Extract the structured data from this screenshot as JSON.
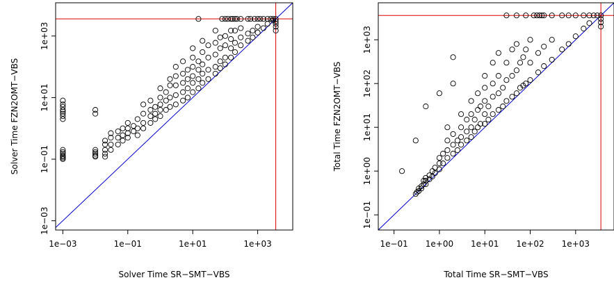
{
  "chart_data": [
    {
      "type": "scatter",
      "scale": "log-log",
      "xlabel": "Solver Time SR−SMT−VBS",
      "ylabel": "Solver Time FZN2OMT−VBS",
      "x_ticks": [
        {
          "value": 0.001,
          "label": "1e−03"
        },
        {
          "value": 0.1,
          "label": "1e−01"
        },
        {
          "value": 10,
          "label": "1e+01"
        },
        {
          "value": 1000,
          "label": "1e+03"
        }
      ],
      "y_ticks": [
        {
          "value": 0.001,
          "label": "1e−03"
        },
        {
          "value": 0.1,
          "label": "1e−01"
        },
        {
          "value": 10,
          "label": "1e+01"
        },
        {
          "value": 1000,
          "label": "1e+03"
        }
      ],
      "xlim": [
        0.0006,
        12000
      ],
      "ylim": [
        0.0005,
        12000
      ],
      "timeout": 3600,
      "diagonal_color": "#0000cc",
      "timeout_color": "#dd0000",
      "points": [
        [
          0.001,
          0.1
        ],
        [
          0.001,
          0.11
        ],
        [
          0.001,
          0.12
        ],
        [
          0.001,
          0.13
        ],
        [
          0.001,
          0.15
        ],
        [
          0.001,
          0.17
        ],
        [
          0.001,
          0.2
        ],
        [
          0.001,
          2.0
        ],
        [
          0.001,
          2.5
        ],
        [
          0.001,
          3.0
        ],
        [
          0.001,
          3.5
        ],
        [
          0.001,
          4.0
        ],
        [
          0.001,
          5.0
        ],
        [
          0.001,
          6.0
        ],
        [
          0.001,
          8.0
        ],
        [
          0.01,
          0.12
        ],
        [
          0.01,
          0.13
        ],
        [
          0.01,
          0.15
        ],
        [
          0.01,
          0.17
        ],
        [
          0.01,
          0.2
        ],
        [
          0.01,
          3.0
        ],
        [
          0.01,
          4.0
        ],
        [
          0.02,
          0.12
        ],
        [
          0.02,
          0.15
        ],
        [
          0.02,
          0.2
        ],
        [
          0.02,
          0.3
        ],
        [
          0.02,
          0.4
        ],
        [
          0.03,
          0.2
        ],
        [
          0.03,
          0.3
        ],
        [
          0.03,
          0.5
        ],
        [
          0.03,
          0.7
        ],
        [
          0.05,
          0.3
        ],
        [
          0.05,
          0.5
        ],
        [
          0.05,
          0.8
        ],
        [
          0.07,
          0.4
        ],
        [
          0.07,
          0.6
        ],
        [
          0.07,
          1.0
        ],
        [
          0.1,
          0.5
        ],
        [
          0.1,
          0.7
        ],
        [
          0.1,
          1.0
        ],
        [
          0.1,
          1.5
        ],
        [
          0.15,
          0.8
        ],
        [
          0.15,
          1.2
        ],
        [
          0.2,
          0.6
        ],
        [
          0.2,
          1.0
        ],
        [
          0.2,
          2.0
        ],
        [
          0.3,
          1.0
        ],
        [
          0.3,
          1.5
        ],
        [
          0.3,
          3.0
        ],
        [
          0.3,
          6.0
        ],
        [
          0.5,
          1.5
        ],
        [
          0.5,
          2.5
        ],
        [
          0.5,
          4.0
        ],
        [
          0.5,
          8.0
        ],
        [
          0.7,
          2.0
        ],
        [
          0.7,
          3.0
        ],
        [
          0.7,
          5.0
        ],
        [
          1,
          2.5
        ],
        [
          1,
          4.0
        ],
        [
          1,
          6.0
        ],
        [
          1,
          10
        ],
        [
          1,
          20
        ],
        [
          1.5,
          4
        ],
        [
          1.5,
          8
        ],
        [
          1.5,
          15
        ],
        [
          2,
          5
        ],
        [
          2,
          10
        ],
        [
          2,
          25
        ],
        [
          2,
          40
        ],
        [
          3,
          6
        ],
        [
          3,
          12
        ],
        [
          3,
          25
        ],
        [
          3,
          50
        ],
        [
          3,
          100
        ],
        [
          5,
          8
        ],
        [
          5,
          15
        ],
        [
          5,
          30
        ],
        [
          5,
          60
        ],
        [
          5,
          150
        ],
        [
          7,
          10
        ],
        [
          7,
          20
        ],
        [
          7,
          40
        ],
        [
          7,
          80
        ],
        [
          10,
          15
        ],
        [
          10,
          30
        ],
        [
          10,
          50
        ],
        [
          10,
          100
        ],
        [
          10,
          200
        ],
        [
          10,
          400
        ],
        [
          15,
          20
        ],
        [
          15,
          40
        ],
        [
          15,
          80
        ],
        [
          15,
          150
        ],
        [
          20,
          30
        ],
        [
          20,
          60
        ],
        [
          20,
          120
        ],
        [
          20,
          300
        ],
        [
          20,
          700
        ],
        [
          30,
          40
        ],
        [
          30,
          80
        ],
        [
          30,
          200
        ],
        [
          30,
          500
        ],
        [
          50,
          60
        ],
        [
          50,
          100
        ],
        [
          50,
          250
        ],
        [
          50,
          600
        ],
        [
          50,
          1500
        ],
        [
          70,
          90
        ],
        [
          70,
          150
        ],
        [
          70,
          400
        ],
        [
          70,
          900
        ],
        [
          100,
          120
        ],
        [
          100,
          200
        ],
        [
          100,
          500
        ],
        [
          100,
          1000
        ],
        [
          150,
          200
        ],
        [
          150,
          400
        ],
        [
          150,
          800
        ],
        [
          150,
          1500
        ],
        [
          200,
          300
        ],
        [
          200,
          600
        ],
        [
          200,
          1500
        ],
        [
          300,
          500
        ],
        [
          300,
          900
        ],
        [
          300,
          1800
        ],
        [
          500,
          700
        ],
        [
          500,
          1200
        ],
        [
          700,
          900
        ],
        [
          700,
          1500
        ],
        [
          1000,
          1300
        ],
        [
          1000,
          2000
        ],
        [
          1500,
          1800
        ],
        [
          2000,
          2500
        ],
        [
          3000,
          3200
        ],
        [
          3600,
          1500
        ],
        [
          3600,
          2000
        ],
        [
          3600,
          2500
        ],
        [
          3600,
          3000
        ],
        [
          80,
          3600
        ],
        [
          100,
          3600
        ],
        [
          120,
          3600
        ],
        [
          150,
          3600
        ],
        [
          170,
          3600
        ],
        [
          200,
          3600
        ],
        [
          230,
          3600
        ],
        [
          300,
          3600
        ],
        [
          500,
          3600
        ],
        [
          600,
          3600
        ],
        [
          800,
          3600
        ],
        [
          1000,
          3600
        ],
        [
          1200,
          3600
        ],
        [
          1500,
          3600
        ],
        [
          2000,
          3600
        ],
        [
          2500,
          3600
        ],
        [
          3000,
          3600
        ],
        [
          3600,
          3600
        ],
        [
          15,
          3600
        ]
      ]
    },
    {
      "type": "scatter",
      "scale": "log-log",
      "xlabel": "Total Time SR−SMT−VBS",
      "ylabel": "Total Time FZN2OMT−VBS",
      "x_ticks": [
        {
          "value": 0.1,
          "label": "1e−01"
        },
        {
          "value": 1,
          "label": "1e+00"
        },
        {
          "value": 10,
          "label": "1e+01"
        },
        {
          "value": 100,
          "label": "1e+02"
        },
        {
          "value": 1000,
          "label": "1e+03"
        }
      ],
      "y_ticks": [
        {
          "value": 0.1,
          "label": "1e−01"
        },
        {
          "value": 1,
          "label": "1e+00"
        },
        {
          "value": 10,
          "label": "1e+01"
        },
        {
          "value": 100,
          "label": "1e+02"
        },
        {
          "value": 1000,
          "label": "1e+03"
        }
      ],
      "xlim": [
        0.045,
        7000
      ],
      "ylim": [
        0.045,
        7000
      ],
      "timeout": 3600,
      "diagonal_color": "#0000cc",
      "timeout_color": "#dd0000",
      "points": [
        [
          0.3,
          0.3
        ],
        [
          0.32,
          0.33
        ],
        [
          0.35,
          0.35
        ],
        [
          0.35,
          0.4
        ],
        [
          0.4,
          0.4
        ],
        [
          0.4,
          0.45
        ],
        [
          0.45,
          0.5
        ],
        [
          0.45,
          0.6
        ],
        [
          0.5,
          0.5
        ],
        [
          0.5,
          0.6
        ],
        [
          0.5,
          0.7
        ],
        [
          0.6,
          0.65
        ],
        [
          0.6,
          0.8
        ],
        [
          0.7,
          0.75
        ],
        [
          0.7,
          1.0
        ],
        [
          0.8,
          0.9
        ],
        [
          0.8,
          1.2
        ],
        [
          1,
          1.1
        ],
        [
          1,
          1.5
        ],
        [
          1,
          2.0
        ],
        [
          1.2,
          1.5
        ],
        [
          1.2,
          2.5
        ],
        [
          1.5,
          2
        ],
        [
          1.5,
          3
        ],
        [
          1.5,
          5
        ],
        [
          2,
          2.5
        ],
        [
          2,
          4
        ],
        [
          2,
          7
        ],
        [
          2.5,
          3
        ],
        [
          2.5,
          5
        ],
        [
          3,
          4
        ],
        [
          3,
          6
        ],
        [
          3,
          10
        ],
        [
          3,
          20
        ],
        [
          4,
          5
        ],
        [
          4,
          8
        ],
        [
          4,
          15
        ],
        [
          5,
          6
        ],
        [
          5,
          10
        ],
        [
          5,
          20
        ],
        [
          5,
          40
        ],
        [
          6,
          8
        ],
        [
          6,
          15
        ],
        [
          7,
          10
        ],
        [
          7,
          25
        ],
        [
          7,
          60
        ],
        [
          8,
          12
        ],
        [
          8,
          30
        ],
        [
          10,
          12
        ],
        [
          10,
          20
        ],
        [
          10,
          40
        ],
        [
          10,
          80
        ],
        [
          10,
          150
        ],
        [
          12,
          15
        ],
        [
          12,
          30
        ],
        [
          15,
          20
        ],
        [
          15,
          50
        ],
        [
          15,
          100
        ],
        [
          15,
          300
        ],
        [
          20,
          25
        ],
        [
          20,
          60
        ],
        [
          20,
          150
        ],
        [
          20,
          500
        ],
        [
          25,
          30
        ],
        [
          25,
          80
        ],
        [
          30,
          40
        ],
        [
          30,
          120
        ],
        [
          30,
          300
        ],
        [
          40,
          50
        ],
        [
          40,
          150
        ],
        [
          40,
          600
        ],
        [
          50,
          60
        ],
        [
          50,
          200
        ],
        [
          50,
          800
        ],
        [
          60,
          80
        ],
        [
          60,
          300
        ],
        [
          70,
          90
        ],
        [
          70,
          400
        ],
        [
          80,
          100
        ],
        [
          80,
          600
        ],
        [
          100,
          120
        ],
        [
          100,
          300
        ],
        [
          100,
          1000
        ],
        [
          150,
          180
        ],
        [
          150,
          500
        ],
        [
          200,
          250
        ],
        [
          200,
          700
        ],
        [
          300,
          350
        ],
        [
          300,
          1000
        ],
        [
          500,
          600
        ],
        [
          700,
          800
        ],
        [
          1000,
          1200
        ],
        [
          1500,
          1800
        ],
        [
          2000,
          2400
        ],
        [
          3600,
          3000
        ],
        [
          3600,
          2500
        ],
        [
          3600,
          2000
        ],
        [
          0.15,
          1.0
        ],
        [
          0.3,
          5.0
        ],
        [
          0.5,
          30.0
        ],
        [
          1.0,
          60.0
        ],
        [
          2.0,
          100.0
        ],
        [
          2.0,
          400.0
        ],
        [
          1.5,
          10.0
        ],
        [
          30,
          3600
        ],
        [
          50,
          3600
        ],
        [
          80,
          3600
        ],
        [
          120,
          3600
        ],
        [
          140,
          3600
        ],
        [
          160,
          3600
        ],
        [
          180,
          3600
        ],
        [
          200,
          3600
        ],
        [
          300,
          3600
        ],
        [
          500,
          3600
        ],
        [
          700,
          3600
        ],
        [
          1000,
          3600
        ],
        [
          1500,
          3600
        ],
        [
          2000,
          3600
        ],
        [
          2500,
          3600
        ],
        [
          3000,
          3600
        ],
        [
          3600,
          3600
        ]
      ]
    }
  ]
}
